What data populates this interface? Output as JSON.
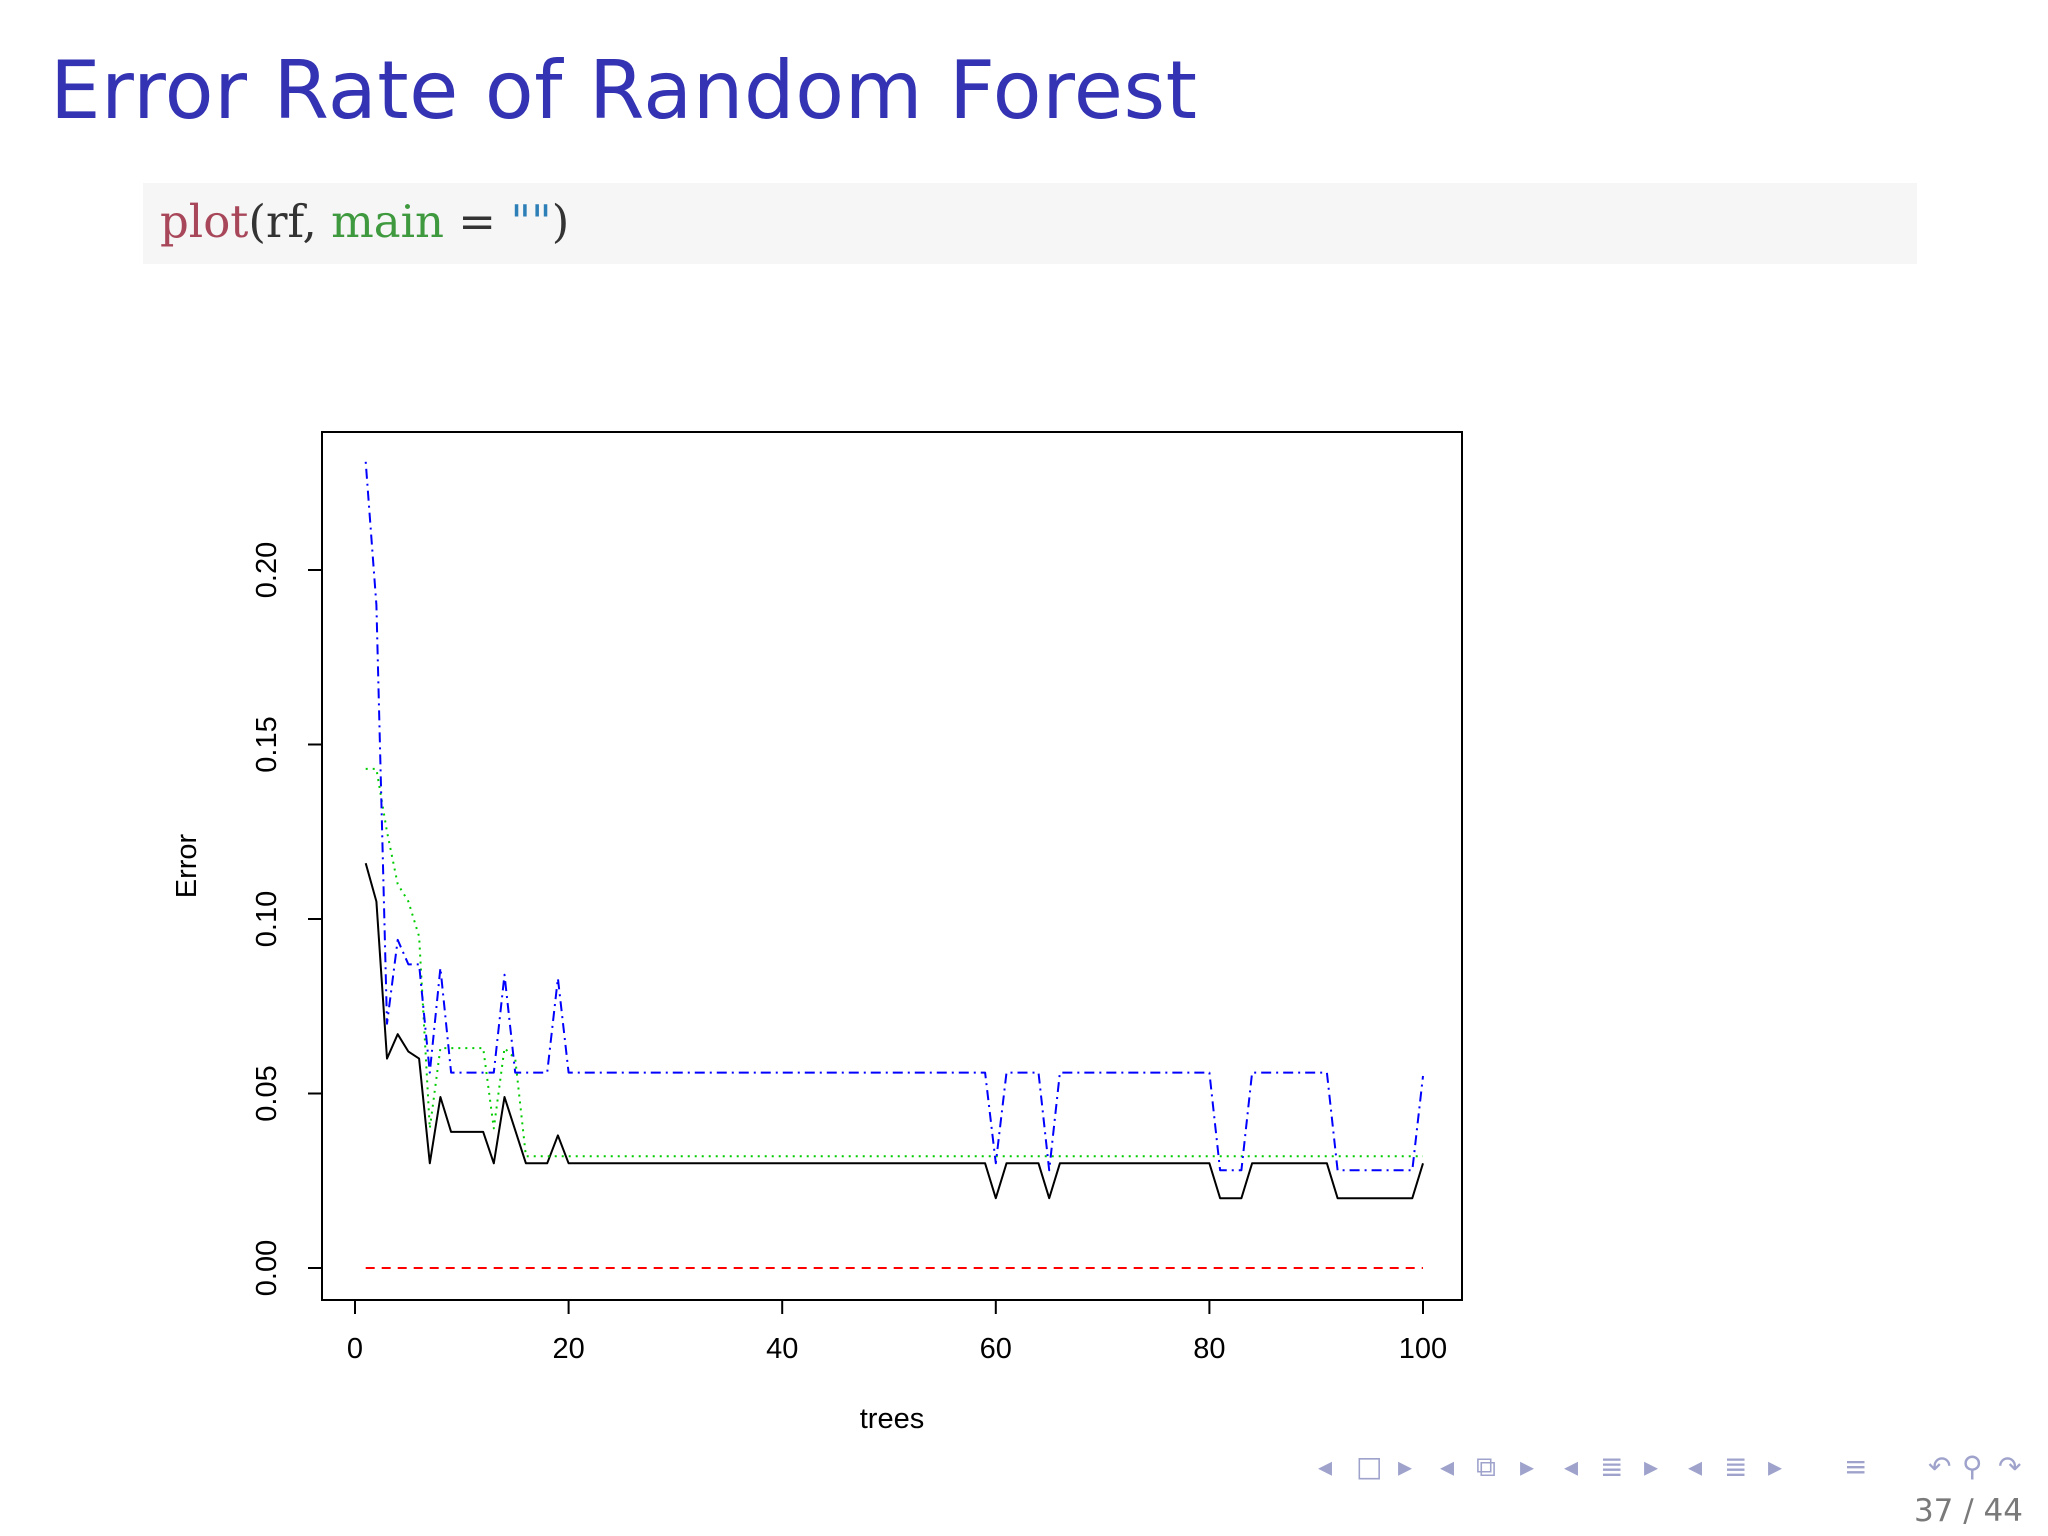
{
  "slide": {
    "title": "Error Rate of Random Forest",
    "page_number": "37 / 44"
  },
  "code": {
    "fn": "plot",
    "open": "(",
    "obj": "rf",
    "comma": ", ",
    "arg": "main",
    "eq": " = ",
    "str": "\"\"",
    "close": ")"
  },
  "nav": {
    "icons": [
      "triangle-left-icon",
      "frame-icon",
      "triangle-right-icon",
      "triangle-left-icon",
      "subsection-icon",
      "triangle-right-icon",
      "triangle-left-icon",
      "section-icon",
      "triangle-right-icon",
      "triangle-left-icon",
      "list-icon",
      "triangle-right-icon",
      "align-icon",
      "search-icon",
      "undo-icon",
      "redo-icon"
    ]
  },
  "chart_data": {
    "type": "line",
    "title": "",
    "xlabel": "trees",
    "ylabel": "Error",
    "xlim": [
      0,
      100
    ],
    "ylim": [
      0,
      0.22
    ],
    "xticks": [
      0,
      20,
      40,
      60,
      80,
      100
    ],
    "yticks": [
      "0.00",
      "0.05",
      "0.10",
      "0.15",
      "0.20"
    ],
    "grid": false,
    "legend": "none",
    "series": [
      {
        "color": "#000000",
        "dash": "none",
        "points": [
          [
            1,
            0.116
          ],
          [
            2,
            0.105
          ],
          [
            3,
            0.06
          ],
          [
            4,
            0.067
          ],
          [
            5,
            0.062
          ],
          [
            6,
            0.06
          ],
          [
            7,
            0.03
          ],
          [
            8,
            0.049
          ],
          [
            9,
            0.039
          ],
          [
            12,
            0.039
          ],
          [
            13,
            0.03
          ],
          [
            14,
            0.049
          ],
          [
            16,
            0.03
          ],
          [
            18,
            0.03
          ],
          [
            19,
            0.038
          ],
          [
            20,
            0.03
          ],
          [
            59,
            0.03
          ],
          [
            60,
            0.02
          ],
          [
            61,
            0.03
          ],
          [
            64,
            0.03
          ],
          [
            65,
            0.02
          ],
          [
            66,
            0.03
          ],
          [
            80,
            0.03
          ],
          [
            81,
            0.02
          ],
          [
            83,
            0.02
          ],
          [
            84,
            0.03
          ],
          [
            91,
            0.03
          ],
          [
            92,
            0.02
          ],
          [
            99,
            0.02
          ],
          [
            100,
            0.03
          ]
        ]
      },
      {
        "color": "#ff0000",
        "dash": "dashed",
        "points": [
          [
            1,
            0.0
          ],
          [
            100,
            0.0
          ]
        ]
      },
      {
        "color": "#00cc00",
        "dash": "dotted",
        "points": [
          [
            1,
            0.143
          ],
          [
            2,
            0.143
          ],
          [
            3,
            0.125
          ],
          [
            4,
            0.11
          ],
          [
            5,
            0.105
          ],
          [
            6,
            0.095
          ],
          [
            7,
            0.04
          ],
          [
            8,
            0.063
          ],
          [
            12,
            0.063
          ],
          [
            13,
            0.04
          ],
          [
            14,
            0.063
          ],
          [
            15,
            0.06
          ],
          [
            16,
            0.032
          ],
          [
            100,
            0.032
          ]
        ]
      },
      {
        "color": "#0000ff",
        "dash": "dotdash",
        "points": [
          [
            1,
            0.231
          ],
          [
            2,
            0.19
          ],
          [
            3,
            0.07
          ],
          [
            4,
            0.094
          ],
          [
            5,
            0.087
          ],
          [
            6,
            0.087
          ],
          [
            7,
            0.056
          ],
          [
            8,
            0.086
          ],
          [
            9,
            0.056
          ],
          [
            13,
            0.056
          ],
          [
            14,
            0.084
          ],
          [
            15,
            0.056
          ],
          [
            18,
            0.056
          ],
          [
            19,
            0.083
          ],
          [
            20,
            0.056
          ],
          [
            59,
            0.056
          ],
          [
            60,
            0.03
          ],
          [
            61,
            0.056
          ],
          [
            64,
            0.056
          ],
          [
            65,
            0.028
          ],
          [
            66,
            0.056
          ],
          [
            80,
            0.056
          ],
          [
            81,
            0.028
          ],
          [
            83,
            0.028
          ],
          [
            84,
            0.056
          ],
          [
            91,
            0.056
          ],
          [
            92,
            0.028
          ],
          [
            99,
            0.028
          ],
          [
            100,
            0.055
          ]
        ]
      }
    ]
  }
}
